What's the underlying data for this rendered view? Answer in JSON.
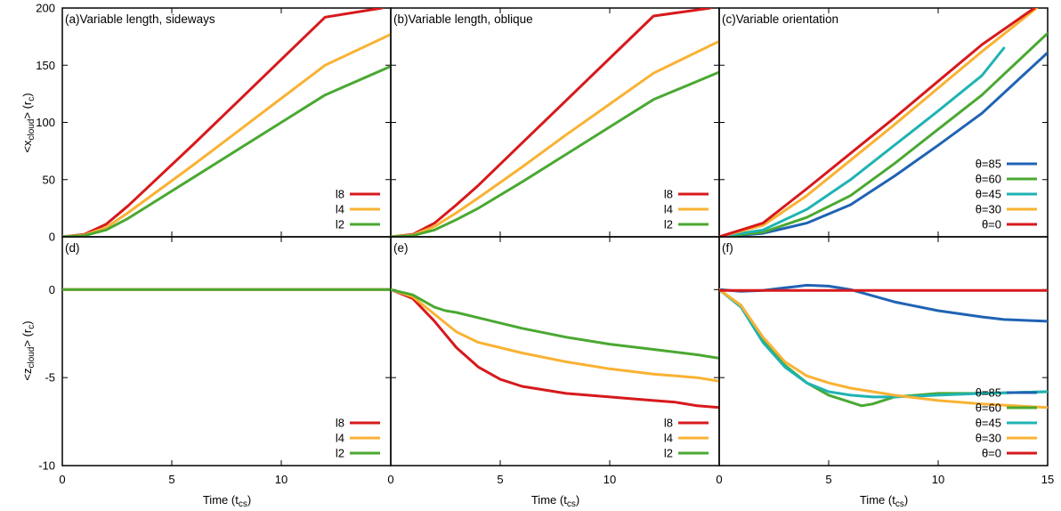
{
  "colors": {
    "red": "#d7191c",
    "orange": "#f9b233",
    "green": "#4aa832",
    "teal": "#1fb3b3",
    "blue": "#1f63b4"
  },
  "axes": {
    "top_ylabel_main": "<x",
    "top_ylabel_sub": "cloud",
    "top_ylabel_tail": "> (r",
    "top_ylabel_unit_sub": "c",
    "top_ylabel_close": ")",
    "bot_ylabel_main": "<z",
    "bot_ylabel_sub": "cloud",
    "bot_ylabel_tail": "> (r",
    "bot_ylabel_unit_sub": "c",
    "bot_ylabel_close": ")",
    "xlabel_main": "Time (t",
    "xlabel_sub": "cs",
    "xlabel_close": ")",
    "top_yticks": [
      "0",
      "50",
      "100",
      "150",
      "200"
    ],
    "bot_yticks": [
      "0",
      "-5",
      "-10"
    ],
    "xticks_ab": [
      "0",
      "5",
      "10"
    ],
    "xticks_c": [
      "0",
      "5",
      "10",
      "15"
    ]
  },
  "chart_data": [
    {
      "type": "line",
      "id": "a",
      "title": "(a)Variable length, sideways",
      "xlim": [
        0,
        15
      ],
      "ylim": [
        0,
        200
      ],
      "legend_position": "bottom-right",
      "series": [
        {
          "name": "l8",
          "color": "red",
          "x": [
            0,
            1,
            2,
            3,
            4,
            6,
            8,
            10,
            12,
            14.6
          ],
          "y": [
            0,
            2,
            11,
            27,
            45,
            81,
            118,
            155,
            192,
            200
          ]
        },
        {
          "name": "l4",
          "color": "orange",
          "x": [
            0,
            1,
            2,
            3,
            4,
            6,
            8,
            10,
            12,
            15
          ],
          "y": [
            0,
            1.5,
            8,
            21,
            35,
            63,
            92,
            121,
            150,
            177
          ]
        },
        {
          "name": "l2",
          "color": "green",
          "x": [
            0,
            1,
            2,
            3,
            4,
            6,
            8,
            10,
            12,
            15
          ],
          "y": [
            0,
            1,
            6,
            16,
            28,
            52,
            76,
            100,
            124,
            149
          ]
        }
      ]
    },
    {
      "type": "line",
      "id": "b",
      "title": "(b)Variable length, oblique",
      "xlim": [
        0,
        15
      ],
      "ylim": [
        0,
        200
      ],
      "legend_position": "bottom-right",
      "series": [
        {
          "name": "l8",
          "color": "red",
          "x": [
            0,
            1,
            2,
            3,
            4,
            6,
            8,
            10,
            12,
            14.6
          ],
          "y": [
            0,
            2,
            12,
            28,
            45,
            82,
            119,
            156,
            193,
            200
          ]
        },
        {
          "name": "l4",
          "color": "orange",
          "x": [
            0,
            1,
            2,
            3,
            4,
            6,
            8,
            10,
            12,
            15
          ],
          "y": [
            0,
            1.5,
            9,
            21,
            34,
            61,
            89,
            116,
            143,
            171
          ]
        },
        {
          "name": "l2",
          "color": "green",
          "x": [
            0,
            1,
            2,
            3,
            4,
            6,
            8,
            10,
            12,
            15
          ],
          "y": [
            0,
            1,
            6,
            15,
            25,
            48,
            72,
            96,
            120,
            144
          ]
        }
      ]
    },
    {
      "type": "line",
      "id": "c",
      "title": "(c)Variable orientation",
      "xlim": [
        0,
        15
      ],
      "ylim": [
        0,
        200
      ],
      "legend_position": "bottom-right",
      "series": [
        {
          "name": "θ=85",
          "color": "blue",
          "x": [
            0,
            2,
            4,
            6,
            8,
            10,
            12,
            15
          ],
          "y": [
            0,
            3,
            12,
            28,
            53,
            80,
            108,
            161
          ]
        },
        {
          "name": "θ=60",
          "color": "green",
          "x": [
            0,
            2,
            4,
            6,
            8,
            10,
            12,
            15
          ],
          "y": [
            0,
            4,
            17,
            36,
            64,
            94,
            124,
            178
          ]
        },
        {
          "name": "θ=45",
          "color": "teal",
          "x": [
            0,
            2,
            4,
            6,
            8,
            10,
            12,
            13
          ],
          "y": [
            0,
            6,
            24,
            50,
            80,
            110,
            141,
            165
          ]
        },
        {
          "name": "θ=30",
          "color": "orange",
          "x": [
            0,
            2,
            4,
            6,
            8,
            10,
            12,
            14.5
          ],
          "y": [
            0,
            10,
            36,
            67,
            98,
            130,
            162,
            200
          ]
        },
        {
          "name": "θ=0",
          "color": "red",
          "x": [
            0,
            2,
            4,
            6,
            8,
            10,
            12,
            14.4
          ],
          "y": [
            0,
            12,
            42,
            73,
            104,
            136,
            168,
            200
          ]
        }
      ]
    },
    {
      "type": "line",
      "id": "d",
      "title": "(d)",
      "xlim": [
        0,
        15
      ],
      "ylim": [
        -10,
        3
      ],
      "legend_position": "bottom-right",
      "series": [
        {
          "name": "l8",
          "color": "red",
          "x": [
            0,
            15
          ],
          "y": [
            0,
            0
          ]
        },
        {
          "name": "l4",
          "color": "orange",
          "x": [
            0,
            15
          ],
          "y": [
            0,
            0
          ]
        },
        {
          "name": "l2",
          "color": "green",
          "x": [
            0,
            15
          ],
          "y": [
            0,
            0
          ]
        }
      ]
    },
    {
      "type": "line",
      "id": "e",
      "title": "(e)",
      "xlim": [
        0,
        15
      ],
      "ylim": [
        -10,
        3
      ],
      "legend_position": "bottom-right",
      "series": [
        {
          "name": "l8",
          "color": "red",
          "x": [
            0,
            1,
            2,
            3,
            4,
            5,
            6,
            8,
            10,
            12,
            13,
            14,
            15
          ],
          "y": [
            0,
            -0.5,
            -1.8,
            -3.3,
            -4.4,
            -5.1,
            -5.5,
            -5.9,
            -6.1,
            -6.3,
            -6.4,
            -6.6,
            -6.7
          ]
        },
        {
          "name": "l4",
          "color": "orange",
          "x": [
            0,
            1,
            2,
            3,
            4,
            5,
            6,
            8,
            10,
            12,
            14,
            15
          ],
          "y": [
            0,
            -0.4,
            -1.4,
            -2.4,
            -3.0,
            -3.3,
            -3.6,
            -4.1,
            -4.5,
            -4.8,
            -5.0,
            -5.2
          ]
        },
        {
          "name": "l2",
          "color": "green",
          "x": [
            0,
            1,
            2,
            2.5,
            3,
            4,
            6,
            8,
            10,
            12,
            14,
            15
          ],
          "y": [
            0,
            -0.3,
            -1.0,
            -1.2,
            -1.3,
            -1.6,
            -2.2,
            -2.7,
            -3.1,
            -3.4,
            -3.7,
            -3.9
          ]
        }
      ]
    },
    {
      "type": "line",
      "id": "f",
      "title": "(f)",
      "xlim": [
        0,
        15
      ],
      "ylim": [
        -10,
        3
      ],
      "legend_position": "bottom-right",
      "series": [
        {
          "name": "θ=85",
          "color": "blue",
          "x": [
            0,
            1,
            2,
            3,
            4,
            5,
            6,
            7,
            8,
            10,
            12,
            13,
            15
          ],
          "y": [
            0,
            -0.1,
            -0.05,
            0.1,
            0.25,
            0.2,
            0,
            -0.35,
            -0.7,
            -1.2,
            -1.55,
            -1.7,
            -1.8
          ]
        },
        {
          "name": "θ=60",
          "color": "green",
          "x": [
            0,
            1,
            2,
            3,
            4,
            5,
            6,
            6.5,
            7,
            8,
            10,
            12,
            15
          ],
          "y": [
            0,
            -0.9,
            -2.8,
            -4.3,
            -5.3,
            -6.0,
            -6.4,
            -6.6,
            -6.5,
            -6.1,
            -5.9,
            -5.9,
            -5.8
          ]
        },
        {
          "name": "θ=45",
          "color": "teal",
          "x": [
            0,
            1,
            2,
            3,
            4,
            5,
            6,
            7,
            8,
            10,
            12,
            15
          ],
          "y": [
            0,
            -1.0,
            -3.0,
            -4.4,
            -5.3,
            -5.8,
            -6.0,
            -6.1,
            -6.1,
            -6.0,
            -5.9,
            -5.8
          ]
        },
        {
          "name": "θ=30",
          "color": "orange",
          "x": [
            0,
            1,
            2,
            3,
            4,
            5,
            6,
            8,
            10,
            12,
            15
          ],
          "y": [
            0,
            -0.9,
            -2.7,
            -4.1,
            -4.9,
            -5.3,
            -5.6,
            -6.0,
            -6.3,
            -6.5,
            -6.7
          ]
        },
        {
          "name": "θ=0",
          "color": "red",
          "x": [
            0,
            15
          ],
          "y": [
            -0.05,
            -0.05
          ]
        }
      ]
    }
  ]
}
